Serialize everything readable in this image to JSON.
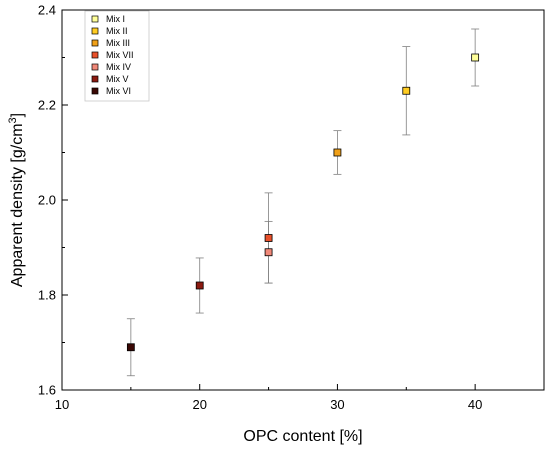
{
  "chart_data": {
    "type": "scatter",
    "title": "",
    "xlabel": "OPC content [%]",
    "ylabel_main": "Apparent density [g/cm",
    "ylabel_sup": "3",
    "ylabel_close": "]",
    "xlim": [
      10,
      45
    ],
    "ylim": [
      1.6,
      2.4
    ],
    "xticks": [
      "10",
      "20",
      "30",
      "40"
    ],
    "yticks": [
      "1.6",
      "1.8",
      "2.0",
      "2.2",
      "2.4"
    ],
    "grid": false,
    "legend_position": "top-left",
    "series": [
      {
        "name": "Mix I",
        "color": "#ffff99",
        "x": 40,
        "y": 2.3,
        "err": 0.06
      },
      {
        "name": "Mix II",
        "color": "#ffcc22",
        "x": 35,
        "y": 2.23,
        "err": 0.093
      },
      {
        "name": "Mix III",
        "color": "#f0a018",
        "x": 30,
        "y": 2.1,
        "err": 0.046
      },
      {
        "name": "Mix VII",
        "color": "#e8502a",
        "x": 25,
        "y": 1.92,
        "err": 0.095
      },
      {
        "name": "Mix IV",
        "color": "#f08878",
        "x": 25,
        "y": 1.89,
        "err": 0.065
      },
      {
        "name": "Mix V",
        "color": "#8b1a10",
        "x": 20,
        "y": 1.82,
        "err": 0.058
      },
      {
        "name": "Mix VI",
        "color": "#3a0804",
        "x": 15,
        "y": 1.69,
        "err": 0.06
      }
    ]
  }
}
